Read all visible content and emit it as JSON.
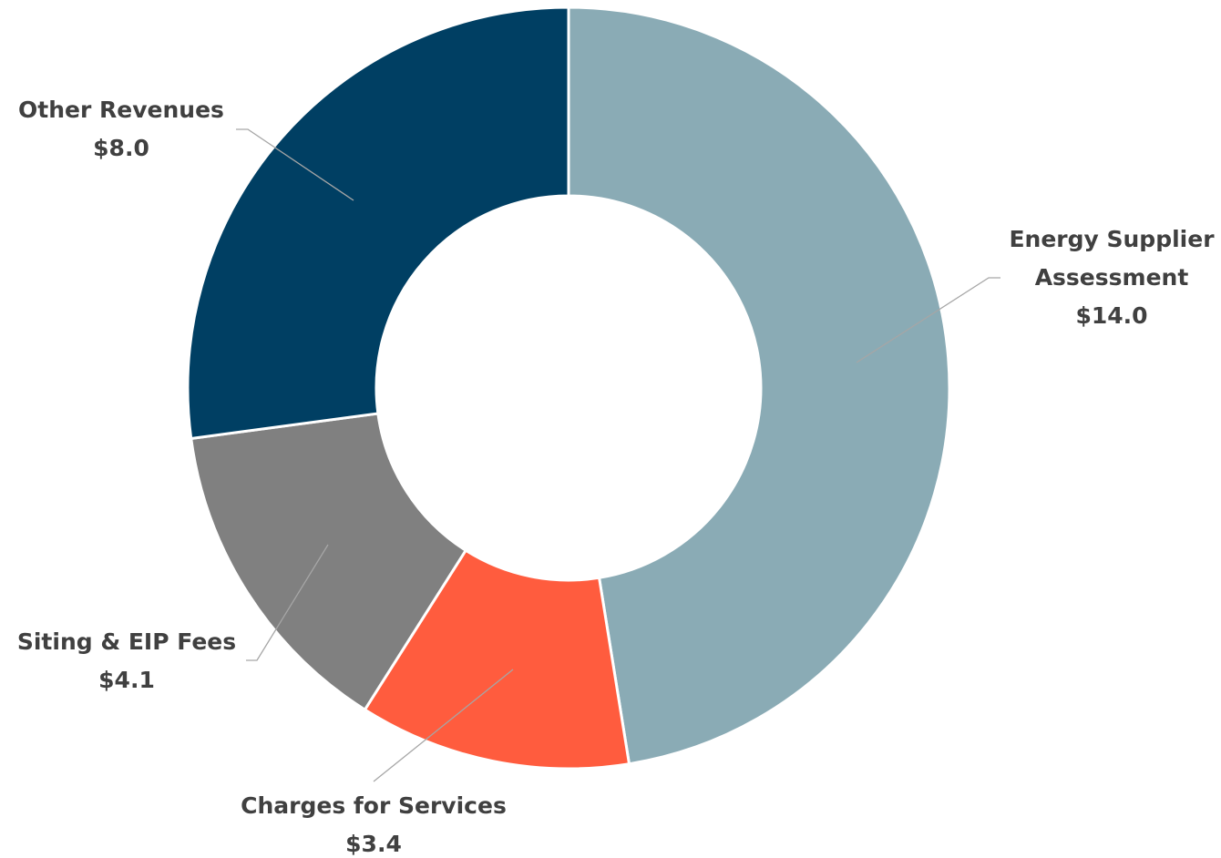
{
  "chart_data": {
    "type": "donut",
    "categories": [
      "Energy Supplier Assessment",
      "Charges for Services",
      "Siting & EIP Fees",
      "Other Revenues"
    ],
    "values": [
      14.0,
      3.4,
      4.1,
      8.0
    ],
    "value_labels": [
      "$14.0",
      "$3.4",
      "$4.1",
      "$8.0"
    ],
    "colors": [
      "#8aabb5",
      "#ff5c3e",
      "#808080",
      "#003f63"
    ]
  }
}
